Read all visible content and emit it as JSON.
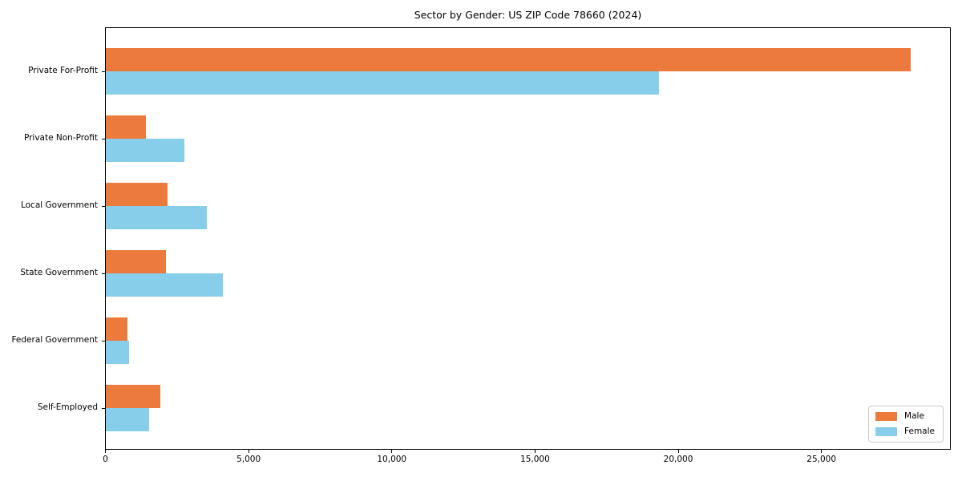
{
  "chart_data": {
    "type": "bar",
    "orientation": "horizontal",
    "title": "Sector by Gender: US ZIP Code 78660 (2024)",
    "xlabel": "",
    "ylabel": "",
    "grid": false,
    "plot_background": "#ffffff",
    "axis_color": "#000000",
    "categories": [
      "Private For-Profit",
      "Private Non-Profit",
      "Local Government",
      "State Government",
      "Federal Government",
      "Self-Employed"
    ],
    "series": [
      {
        "name": "Male",
        "color": "#EC7A3C",
        "values": [
          28100,
          1400,
          2150,
          2100,
          750,
          1900
        ]
      },
      {
        "name": "Female",
        "color": "#87CEEB",
        "values": [
          19300,
          2730,
          3540,
          4100,
          800,
          1500
        ]
      }
    ],
    "xlim": [
      0,
      29530
    ],
    "x_ticks": [
      {
        "value": 0,
        "label": "0"
      },
      {
        "value": 5000,
        "label": "5,000"
      },
      {
        "value": 10000,
        "label": "10,000"
      },
      {
        "value": 15000,
        "label": "15,000"
      },
      {
        "value": 20000,
        "label": "20,000"
      },
      {
        "value": 25000,
        "label": "25,000"
      }
    ],
    "legend": {
      "position": "lower right"
    }
  }
}
